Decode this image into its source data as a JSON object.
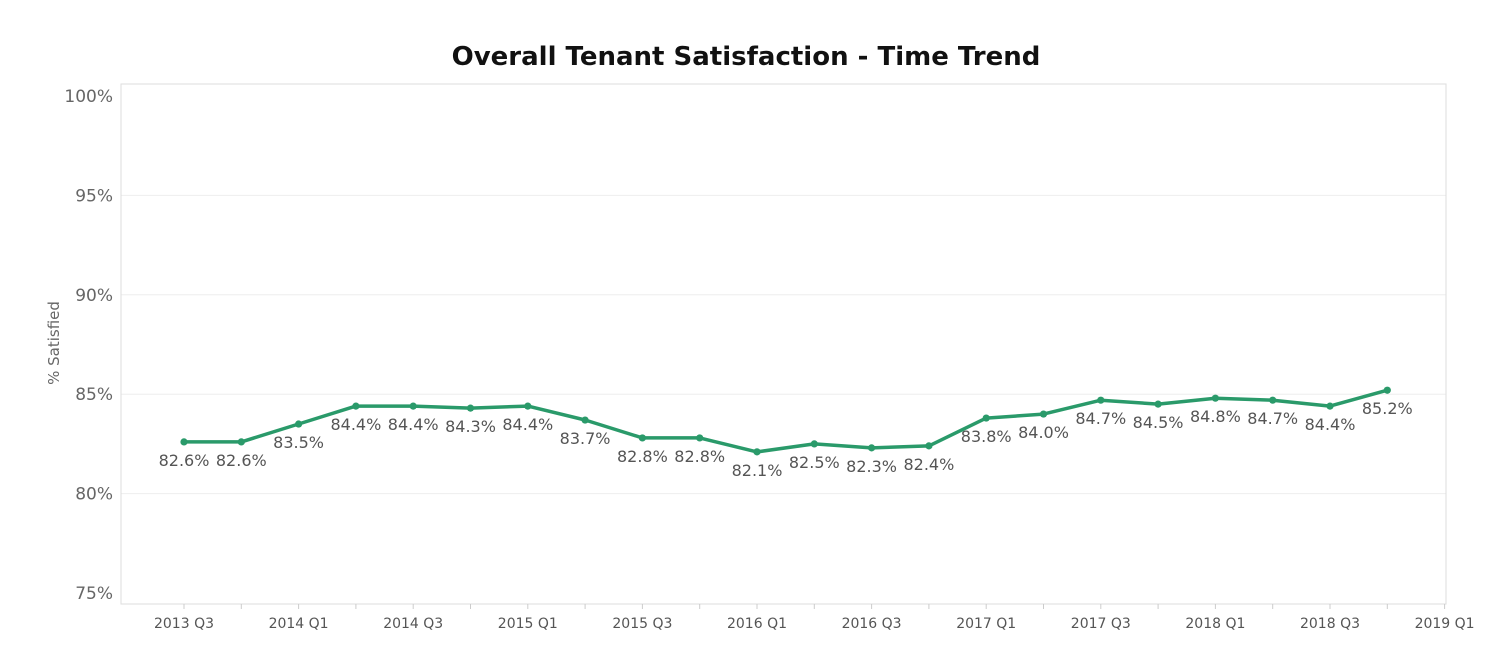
{
  "chart_data": {
    "type": "line",
    "title": "Overall Tenant Satisfaction - Time Trend",
    "xlabel": "",
    "ylabel": "% Satisfied",
    "ylim": [
      75,
      100
    ],
    "yticks": [
      "75%",
      "80%",
      "85%",
      "90%",
      "95%",
      "100%"
    ],
    "grid": true,
    "color": "#2a9a6a",
    "x": [
      "2013 Q3",
      "2013 Q4",
      "2014 Q1",
      "2014 Q2",
      "2014 Q3",
      "2014 Q4",
      "2015 Q1",
      "2015 Q2",
      "2015 Q3",
      "2015 Q4",
      "2016 Q1",
      "2016 Q2",
      "2016 Q3",
      "2016 Q4",
      "2017 Q1",
      "2017 Q2",
      "2017 Q3",
      "2017 Q4",
      "2018 Q1",
      "2018 Q2",
      "2018 Q3",
      "2018 Q4"
    ],
    "xtick_labels": [
      "2013 Q3",
      "2014 Q1",
      "2014 Q3",
      "2015 Q1",
      "2015 Q3",
      "2016 Q1",
      "2016 Q3",
      "2017 Q1",
      "2017 Q3",
      "2018 Q1",
      "2018 Q3",
      "2019 Q1"
    ],
    "series": [
      {
        "values": [
          82.6,
          82.6,
          83.5,
          84.4,
          84.4,
          84.3,
          84.4,
          83.7,
          82.8,
          82.8,
          82.1,
          82.5,
          82.3,
          82.4,
          83.8,
          84.0,
          84.7,
          84.5,
          84.8,
          84.7,
          84.4,
          85.2
        ],
        "labels": [
          "82.6%",
          "82.6%",
          "83.5%",
          "84.4%",
          "84.4%",
          "84.3%",
          "84.4%",
          "83.7%",
          "82.8%",
          "82.8%",
          "82.1%",
          "82.5%",
          "82.3%",
          "82.4%",
          "83.8%",
          "84.0%",
          "84.7%",
          "84.5%",
          "84.8%",
          "84.7%",
          "84.4%",
          "85.2%"
        ]
      }
    ]
  }
}
